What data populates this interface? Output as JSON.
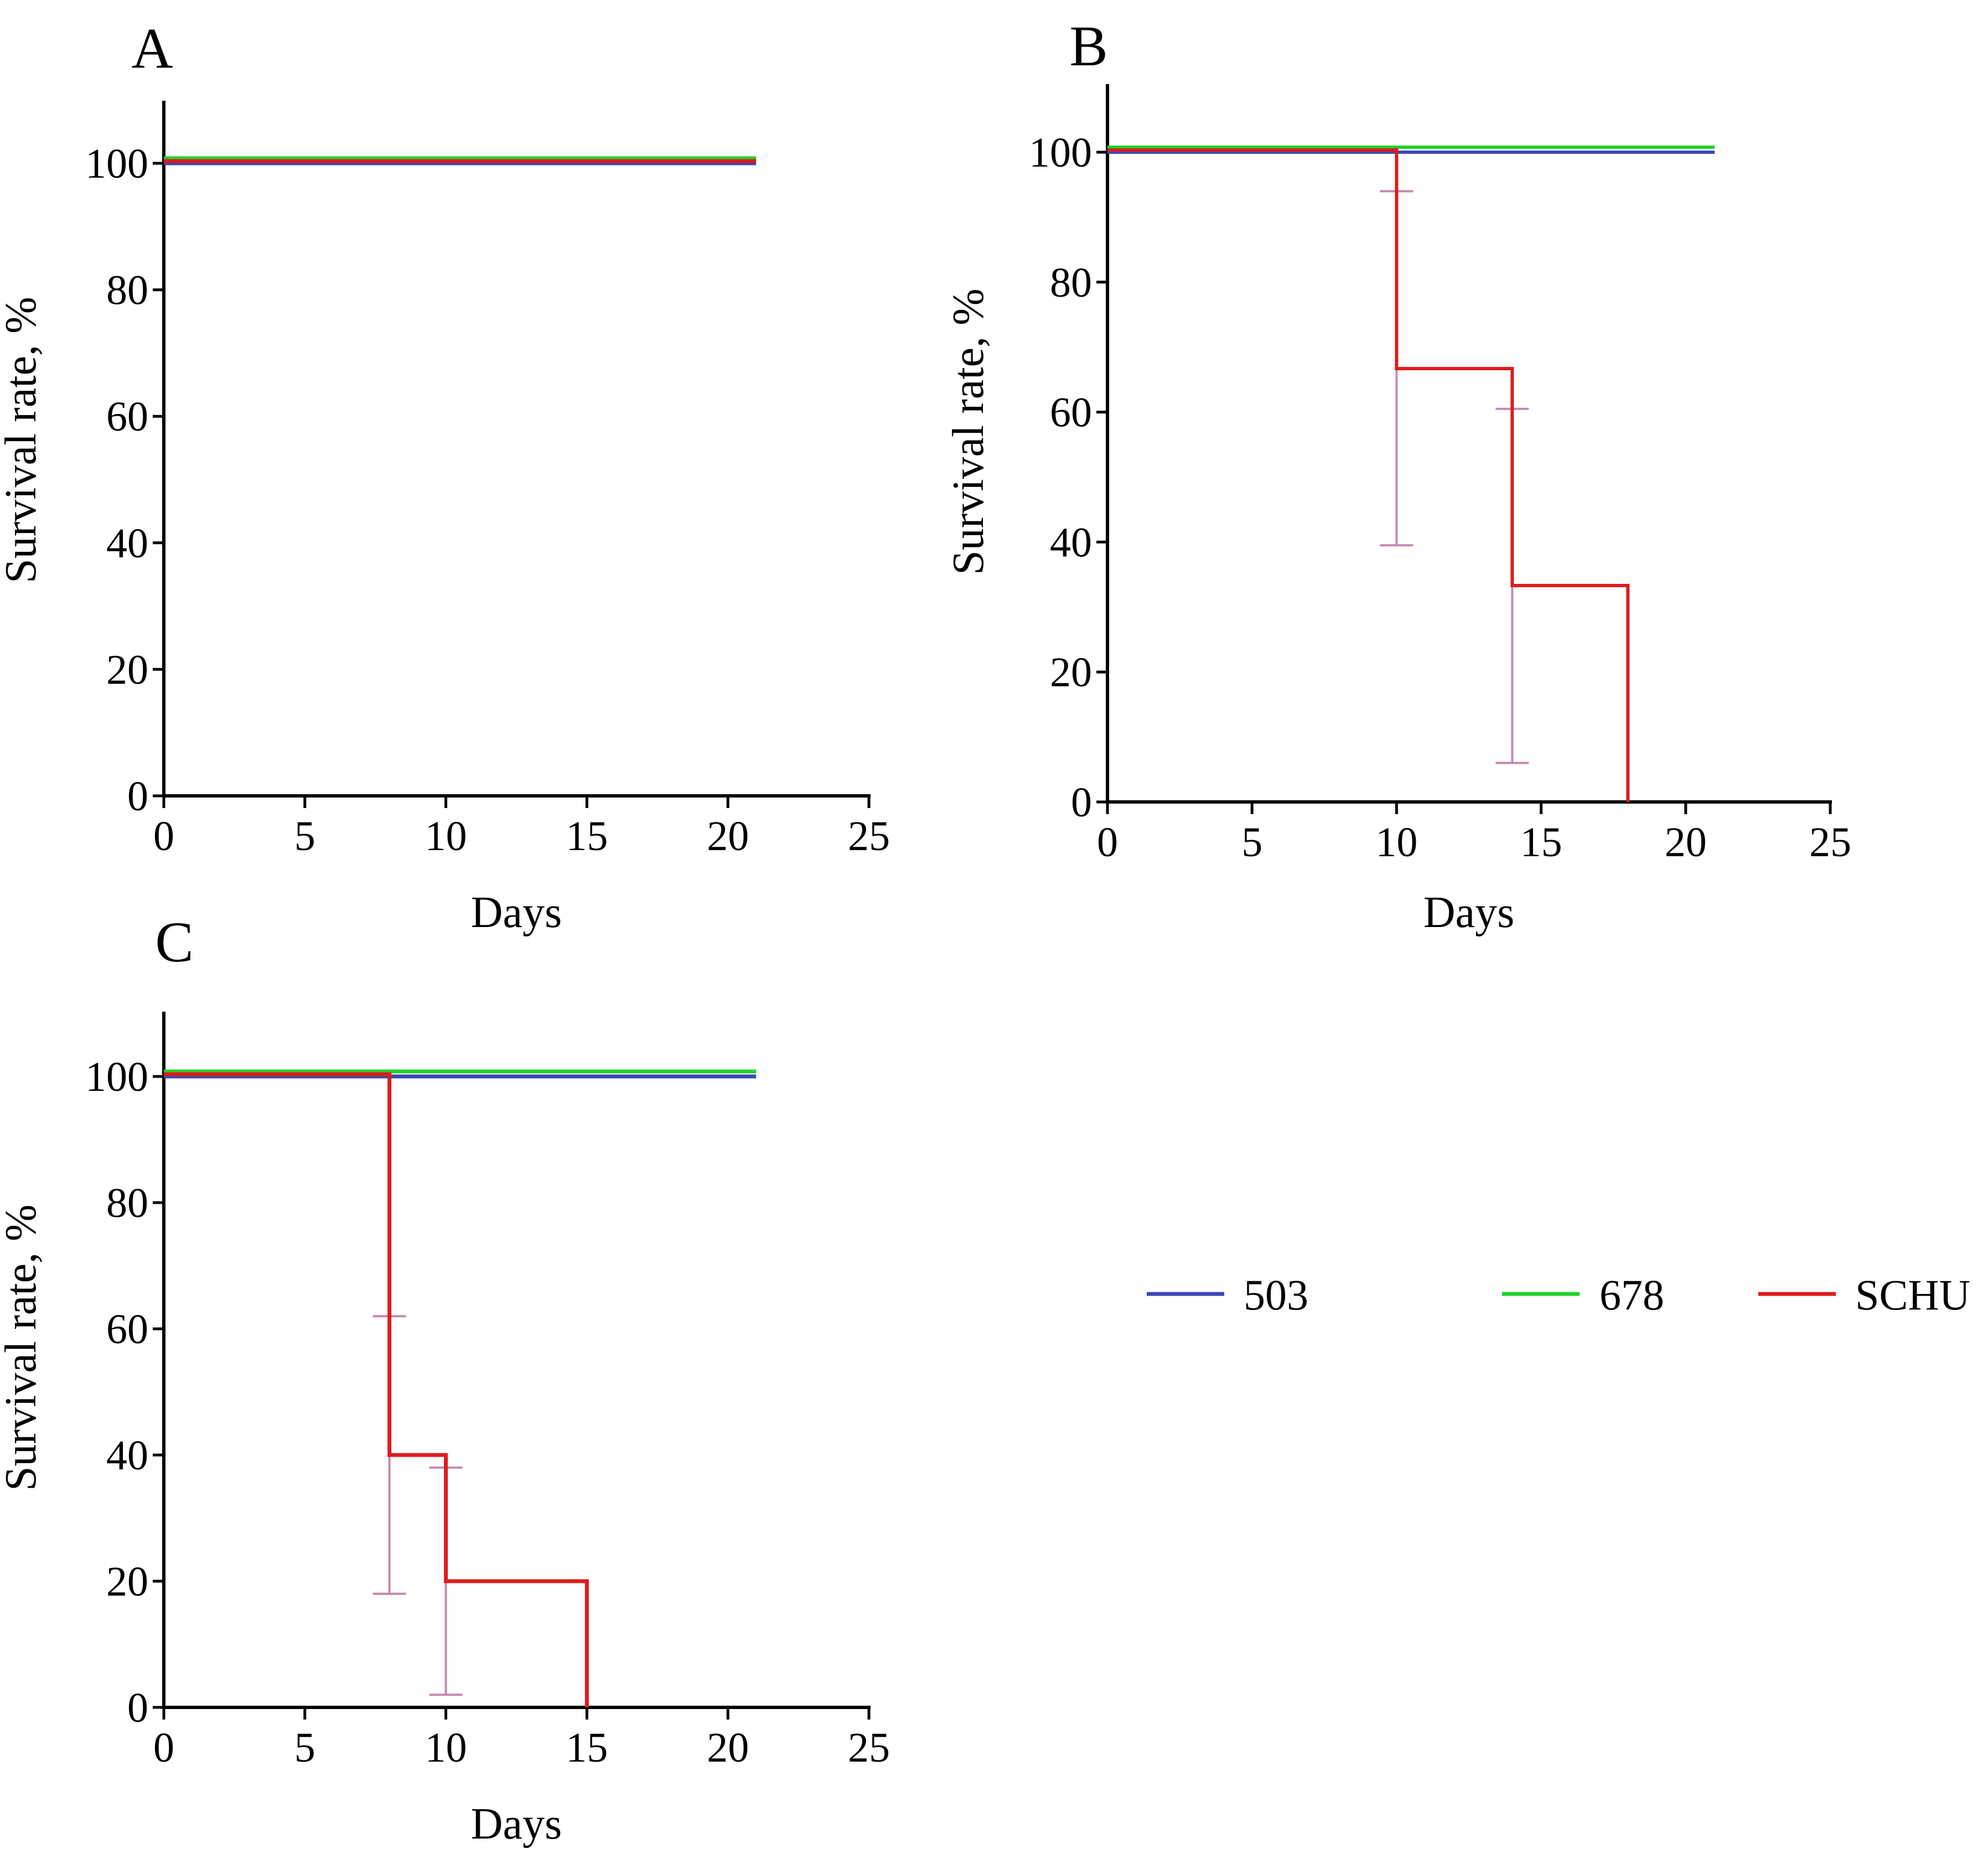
{
  "colors": {
    "503": "#3c46b4",
    "678": "#22d12a",
    "SCHU": "#dc1c1c",
    "error_bar": "#c489b0",
    "axis": "#000000"
  },
  "legend": [
    {
      "key": "503",
      "label": "503"
    },
    {
      "key": "678",
      "label": "678"
    },
    {
      "key": "SCHU",
      "label": "SCHU"
    }
  ],
  "chart_data": [
    {
      "id": "A",
      "type": "line",
      "subtype": "kaplan-meier step",
      "panel_label": "A",
      "xlabel": "Days",
      "ylabel": "Survival rate, %",
      "xlim": [
        0,
        25
      ],
      "ylim": [
        0,
        110
      ],
      "xticks": [
        0,
        5,
        10,
        15,
        20,
        25
      ],
      "yticks": [
        0,
        20,
        40,
        60,
        80,
        100
      ],
      "series": [
        {
          "name": "503",
          "x": [
            0,
            21
          ],
          "y": [
            100,
            100
          ]
        },
        {
          "name": "678",
          "x": [
            0,
            21
          ],
          "y": [
            100,
            100
          ]
        },
        {
          "name": "SCHU",
          "x": [
            0,
            21
          ],
          "y": [
            100,
            100
          ]
        }
      ],
      "error_bars": []
    },
    {
      "id": "B",
      "type": "line",
      "subtype": "kaplan-meier step",
      "panel_label": "B",
      "xlabel": "Days",
      "ylabel": "Survival rate, %",
      "xlim": [
        0,
        25
      ],
      "ylim": [
        0,
        110
      ],
      "xticks": [
        0,
        5,
        10,
        15,
        20,
        25
      ],
      "yticks": [
        0,
        20,
        40,
        60,
        80,
        100
      ],
      "series": [
        {
          "name": "503",
          "x": [
            0,
            21
          ],
          "y": [
            100,
            100
          ]
        },
        {
          "name": "678",
          "x": [
            0,
            21
          ],
          "y": [
            100,
            100
          ]
        },
        {
          "name": "SCHU",
          "x": [
            0,
            10,
            14,
            18
          ],
          "y": [
            100,
            66.7,
            33.3,
            0
          ]
        }
      ],
      "error_bars": [
        {
          "series": "SCHU",
          "x": 10,
          "upper": 94,
          "lower": 39.5
        },
        {
          "series": "SCHU",
          "x": 14,
          "upper": 60.5,
          "lower": 6
        }
      ]
    },
    {
      "id": "C",
      "type": "line",
      "subtype": "kaplan-meier step",
      "panel_label": "C",
      "xlabel": "Days",
      "ylabel": "Survival rate, %",
      "xlim": [
        0,
        25
      ],
      "ylim": [
        0,
        110
      ],
      "xticks": [
        0,
        5,
        10,
        15,
        20,
        25
      ],
      "yticks": [
        0,
        20,
        40,
        60,
        80,
        100
      ],
      "series": [
        {
          "name": "503",
          "x": [
            0,
            21
          ],
          "y": [
            100,
            100
          ]
        },
        {
          "name": "678",
          "x": [
            0,
            21
          ],
          "y": [
            100,
            100
          ]
        },
        {
          "name": "SCHU",
          "x": [
            0,
            8,
            10,
            15
          ],
          "y": [
            100,
            40,
            20,
            0
          ]
        }
      ],
      "error_bars": [
        {
          "series": "SCHU",
          "x": 8,
          "upper": 62,
          "lower": 18
        },
        {
          "series": "SCHU",
          "x": 10,
          "upper": 38,
          "lower": 2
        }
      ]
    }
  ]
}
